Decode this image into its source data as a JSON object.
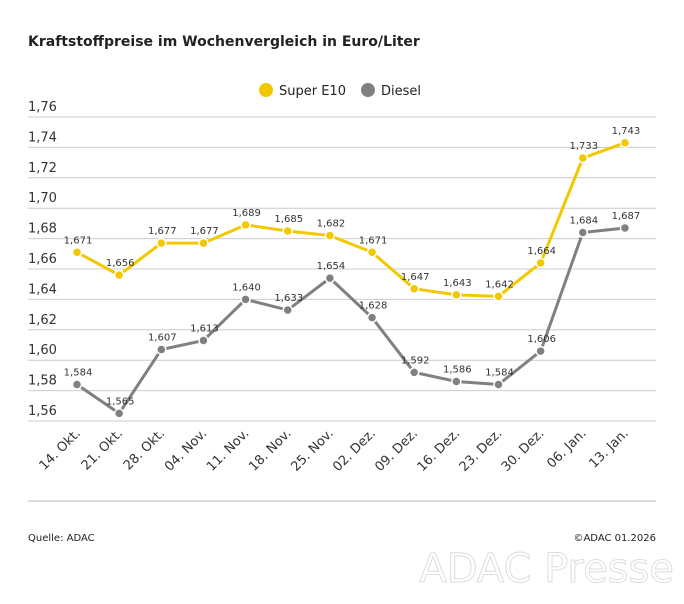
{
  "chart_data": {
    "type": "line",
    "title": "Kraftstoffpreise im Wochenvergleich in Euro/Liter",
    "categories": [
      "14. Okt.",
      "21. Okt.",
      "28. Okt.",
      "04. Nov.",
      "11. Nov.",
      "18. Nov.",
      "25. Nov.",
      "02. Dez.",
      "09. Dez.",
      "16. Dez.",
      "23. Dez.",
      "30. Dez.",
      "06. Jan.",
      "13. Jan."
    ],
    "series": [
      {
        "name": "Super E10",
        "color": "#f3c800",
        "values": [
          1.671,
          1.656,
          1.677,
          1.677,
          1.689,
          1.685,
          1.682,
          1.671,
          1.647,
          1.643,
          1.642,
          1.664,
          1.733,
          1.743
        ],
        "value_labels": [
          "1,671",
          "1,656",
          "1,677",
          "1,677",
          "1,689",
          "1,685",
          "1,682",
          "1,671",
          "1,647",
          "1,643",
          "1,642",
          "1,664",
          "1,733",
          "1,743"
        ]
      },
      {
        "name": "Diesel",
        "color": "#808080",
        "values": [
          1.584,
          1.565,
          1.607,
          1.613,
          1.64,
          1.633,
          1.654,
          1.628,
          1.592,
          1.586,
          1.584,
          1.606,
          1.684,
          1.687
        ],
        "value_labels": [
          "1,584",
          "1,565",
          "1,607",
          "1,613",
          "1,640",
          "1,633",
          "1,654",
          "1,628",
          "1,592",
          "1,586",
          "1,584",
          "1,606",
          "1,684",
          "1,687"
        ]
      }
    ],
    "ylim": [
      1.56,
      1.76
    ],
    "yticks": [
      {
        "value": 1.56,
        "label": "1,56"
      },
      {
        "value": 1.58,
        "label": "1,58"
      },
      {
        "value": 1.6,
        "label": "1,60"
      },
      {
        "value": 1.62,
        "label": "1,62"
      },
      {
        "value": 1.64,
        "label": "1,64"
      },
      {
        "value": 1.66,
        "label": "1,66"
      },
      {
        "value": 1.68,
        "label": "1,68"
      },
      {
        "value": 1.7,
        "label": "1,70"
      },
      {
        "value": 1.72,
        "label": "1,72"
      },
      {
        "value": 1.74,
        "label": "1,74"
      },
      {
        "value": 1.76,
        "label": "1,76"
      }
    ],
    "grid": true,
    "legend": "top",
    "source": "Quelle: ADAC",
    "copyright": "©ADAC 01.2026",
    "watermark": "ADAC Presse"
  }
}
